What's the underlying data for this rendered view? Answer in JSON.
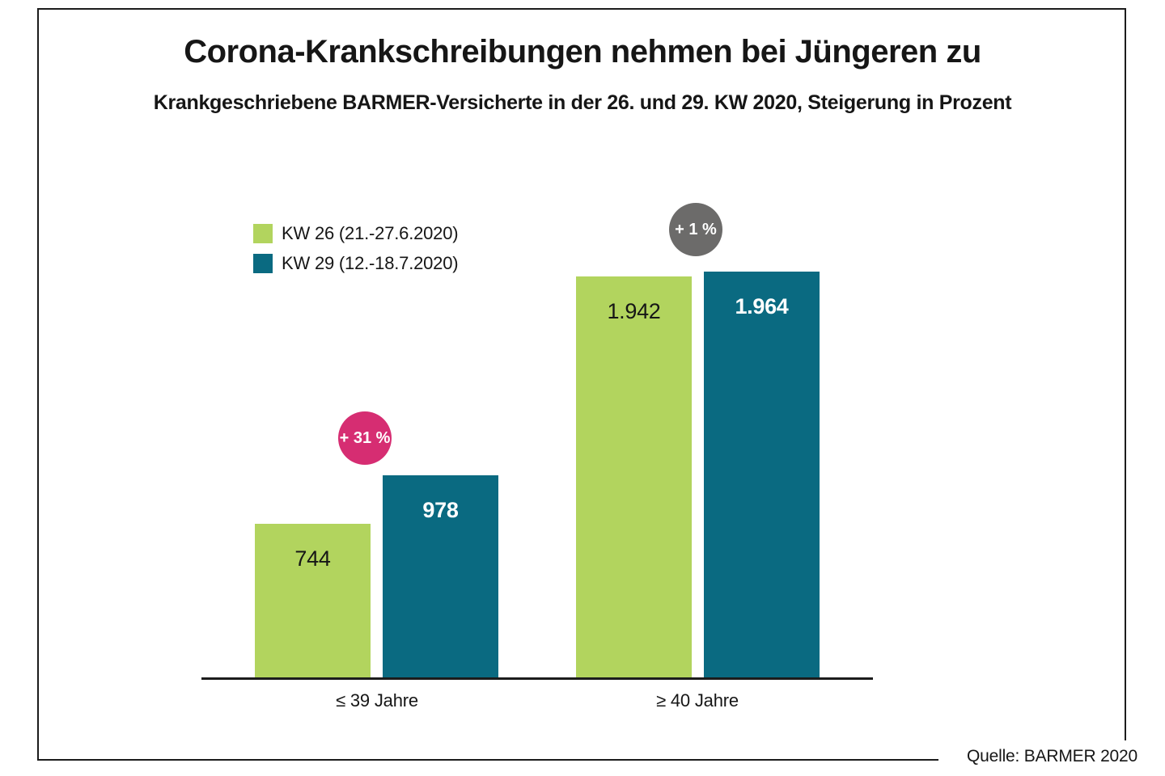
{
  "chart_data": {
    "type": "bar",
    "title": "Corona-Krankschreibungen nehmen bei Jüngeren zu",
    "subtitle": "Krankgeschriebene BARMER-Versicherte in der 26. und 29. KW 2020, Steigerung in Prozent",
    "categories": [
      "≤ 39 Jahre",
      "≥ 40 Jahre"
    ],
    "series": [
      {
        "name": "KW 26 (21.-27.6.2020)",
        "color": "#b2d45e",
        "values": [
          744,
          1942
        ],
        "labels": [
          "744",
          "1.942"
        ]
      },
      {
        "name": "KW 29 (12.-18.7.2020)",
        "color": "#0a6a81",
        "values": [
          978,
          1964
        ],
        "labels": [
          "978",
          "1.964"
        ]
      }
    ],
    "annotations": [
      {
        "text": "+ 31 %",
        "color": "#d62d72",
        "applies_to": "≤ 39 Jahre"
      },
      {
        "text": "+ 1 %",
        "color": "#6c6b6a",
        "applies_to": "≥ 40 Jahre"
      }
    ],
    "ylim": [
      0,
      2100
    ],
    "grid": false,
    "legend_position": "upper-left",
    "source": "Quelle: BARMER 2020"
  }
}
